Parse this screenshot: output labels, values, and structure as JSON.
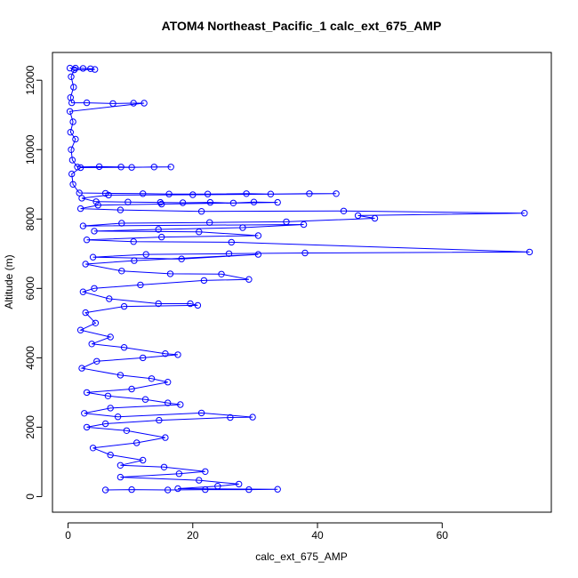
{
  "chart_data": {
    "type": "scatter",
    "title": "ATOM4 Northeast_Pacific_1 calc_ext_675_AMP",
    "xlabel": "calc_ext_675_AMP",
    "ylabel": "Altitude (m)",
    "xlim": [
      -2.5,
      77.5
    ],
    "ylim": [
      -450,
      12800
    ],
    "xticks": [
      0,
      20,
      40,
      60
    ],
    "yticks": [
      0,
      2000,
      4000,
      6000,
      8000,
      10000,
      12000
    ],
    "grid": false,
    "legend": "none",
    "marker": "open-circle",
    "connected": true,
    "series": [
      {
        "color": "#0000ff",
        "points": [
          [
            0.3,
            12350
          ],
          [
            1.2,
            12350
          ],
          [
            2.4,
            12340
          ],
          [
            3.6,
            12330
          ],
          [
            4.3,
            12310
          ],
          [
            1.0,
            12300
          ],
          [
            0.5,
            12100
          ],
          [
            0.9,
            11800
          ],
          [
            0.4,
            11500
          ],
          [
            0.6,
            11350
          ],
          [
            3.0,
            11350
          ],
          [
            7.2,
            11330
          ],
          [
            10.5,
            11340
          ],
          [
            12.2,
            11340
          ],
          [
            0.3,
            11100
          ],
          [
            0.8,
            10800
          ],
          [
            0.4,
            10500
          ],
          [
            1.2,
            10300
          ],
          [
            0.5,
            10000
          ],
          [
            0.7,
            9700
          ],
          [
            1.5,
            9500
          ],
          [
            5.0,
            9510
          ],
          [
            8.5,
            9500
          ],
          [
            10.2,
            9490
          ],
          [
            13.8,
            9500
          ],
          [
            16.5,
            9500
          ],
          [
            2.0,
            9480
          ],
          [
            0.6,
            9300
          ],
          [
            0.8,
            9000
          ],
          [
            1.8,
            8750
          ],
          [
            6.0,
            8740
          ],
          [
            12.0,
            8730
          ],
          [
            16.2,
            8720
          ],
          [
            22.4,
            8720
          ],
          [
            28.6,
            8730
          ],
          [
            32.5,
            8720
          ],
          [
            38.7,
            8730
          ],
          [
            43.0,
            8730
          ],
          [
            20.0,
            8700
          ],
          [
            6.5,
            8690
          ],
          [
            2.2,
            8600
          ],
          [
            4.5,
            8500
          ],
          [
            9.6,
            8490
          ],
          [
            14.8,
            8480
          ],
          [
            18.4,
            8470
          ],
          [
            22.8,
            8480
          ],
          [
            26.5,
            8460
          ],
          [
            29.8,
            8490
          ],
          [
            33.6,
            8480
          ],
          [
            15.0,
            8430
          ],
          [
            4.8,
            8400
          ],
          [
            2.0,
            8300
          ],
          [
            8.4,
            8260
          ],
          [
            21.4,
            8220
          ],
          [
            44.2,
            8230
          ],
          [
            73.2,
            8170
          ],
          [
            46.5,
            8100
          ],
          [
            49.2,
            8020
          ],
          [
            35.0,
            7920
          ],
          [
            22.7,
            7900
          ],
          [
            8.6,
            7880
          ],
          [
            2.4,
            7800
          ],
          [
            37.8,
            7840
          ],
          [
            28.0,
            7750
          ],
          [
            14.5,
            7700
          ],
          [
            4.2,
            7650
          ],
          [
            21.0,
            7630
          ],
          [
            30.5,
            7520
          ],
          [
            15.0,
            7480
          ],
          [
            3.0,
            7400
          ],
          [
            10.5,
            7350
          ],
          [
            26.2,
            7330
          ],
          [
            74.0,
            7050
          ],
          [
            38.0,
            7020
          ],
          [
            25.8,
            7000
          ],
          [
            12.5,
            6980
          ],
          [
            4.0,
            6900
          ],
          [
            18.2,
            6850
          ],
          [
            30.5,
            6980
          ],
          [
            10.6,
            6800
          ],
          [
            2.8,
            6700
          ],
          [
            8.6,
            6500
          ],
          [
            16.4,
            6420
          ],
          [
            24.6,
            6410
          ],
          [
            29.0,
            6260
          ],
          [
            21.8,
            6230
          ],
          [
            11.6,
            6100
          ],
          [
            4.2,
            6000
          ],
          [
            2.4,
            5900
          ],
          [
            6.6,
            5700
          ],
          [
            14.5,
            5560
          ],
          [
            19.6,
            5560
          ],
          [
            20.8,
            5510
          ],
          [
            9.0,
            5480
          ],
          [
            2.8,
            5300
          ],
          [
            4.4,
            5000
          ],
          [
            2.0,
            4800
          ],
          [
            6.8,
            4600
          ],
          [
            3.8,
            4400
          ],
          [
            9.0,
            4300
          ],
          [
            15.6,
            4120
          ],
          [
            17.6,
            4090
          ],
          [
            12.0,
            4000
          ],
          [
            4.6,
            3900
          ],
          [
            2.2,
            3700
          ],
          [
            8.4,
            3500
          ],
          [
            13.4,
            3400
          ],
          [
            16.0,
            3300
          ],
          [
            10.2,
            3100
          ],
          [
            3.0,
            3000
          ],
          [
            6.4,
            2900
          ],
          [
            12.4,
            2800
          ],
          [
            16.0,
            2700
          ],
          [
            18.0,
            2650
          ],
          [
            6.8,
            2550
          ],
          [
            2.6,
            2400
          ],
          [
            8.0,
            2300
          ],
          [
            21.4,
            2410
          ],
          [
            29.6,
            2290
          ],
          [
            26.0,
            2280
          ],
          [
            14.6,
            2200
          ],
          [
            6.0,
            2100
          ],
          [
            3.0,
            2000
          ],
          [
            9.4,
            1900
          ],
          [
            15.6,
            1700
          ],
          [
            11.0,
            1550
          ],
          [
            4.0,
            1400
          ],
          [
            6.8,
            1200
          ],
          [
            12.0,
            1050
          ],
          [
            8.4,
            900
          ],
          [
            15.4,
            850
          ],
          [
            22.0,
            720
          ],
          [
            17.8,
            660
          ],
          [
            8.4,
            560
          ],
          [
            21.0,
            470
          ],
          [
            27.4,
            360
          ],
          [
            24.0,
            300
          ],
          [
            17.6,
            230
          ],
          [
            33.6,
            210
          ],
          [
            29.0,
            200
          ],
          [
            22.0,
            200
          ],
          [
            16.0,
            190
          ],
          [
            10.2,
            200
          ],
          [
            6.0,
            190
          ]
        ]
      }
    ]
  }
}
